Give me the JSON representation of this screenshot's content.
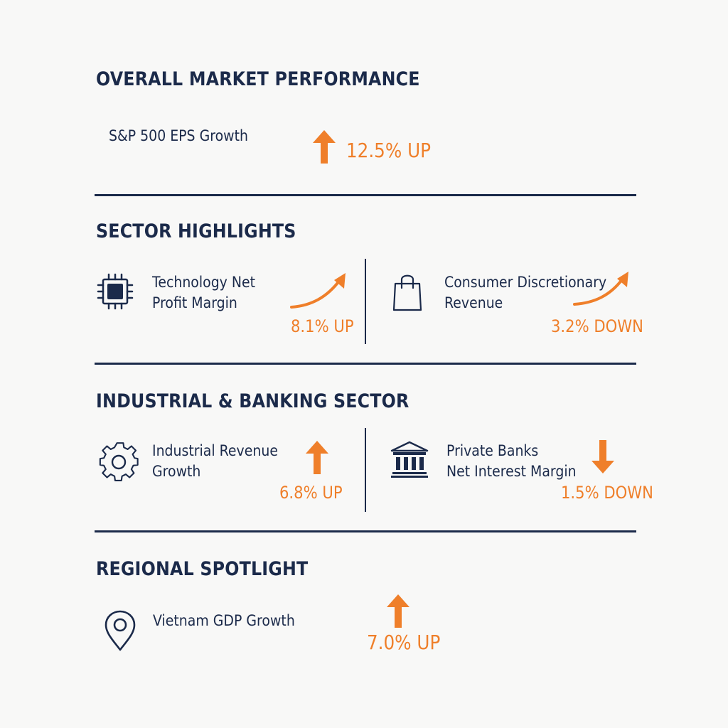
{
  "colors": {
    "navy": "#1b2a4a",
    "accent": "#ef7f2a",
    "background": "#f8f8f7"
  },
  "overall": {
    "heading": "OVERALL MARKET PERFORMANCE",
    "metric": {
      "label": "S&P 500 EPS Growth",
      "value": "12.5% UP",
      "arrow_icon": "arrow-up-icon"
    }
  },
  "sector_highlights": {
    "heading": "SECTOR HIGHLIGHTS",
    "items": [
      {
        "label_line1": "Technology Net",
        "label_line2": "Profit Margin",
        "value": "8.1% UP",
        "icon": "microchip-icon",
        "arrow_icon": "curved-arrow-up-icon"
      },
      {
        "label_line1": "Consumer Discretionary",
        "label_line2": "Revenue",
        "value": "3.2% DOWN",
        "icon": "shopping-bag-icon",
        "arrow_icon": "curved-arrow-up-icon"
      }
    ]
  },
  "industrial_banking": {
    "heading": "INDUSTRIAL & BANKING SECTOR",
    "items": [
      {
        "label_line1": "Industrial Revenue",
        "label_line2": "Growth",
        "value": "6.8% UP",
        "icon": "gear-icon",
        "arrow_icon": "arrow-up-icon"
      },
      {
        "label_line1": "Private Banks",
        "label_line2": "Net Interest Margin",
        "value": "1.5% DOWN",
        "icon": "bank-icon",
        "arrow_icon": "arrow-down-icon"
      }
    ]
  },
  "regional": {
    "heading": "REGIONAL SPOTLIGHT",
    "metric": {
      "label": "Vietnam GDP Growth",
      "value": "7.0% UP",
      "icon": "location-pin-icon",
      "arrow_icon": "arrow-up-icon"
    }
  }
}
